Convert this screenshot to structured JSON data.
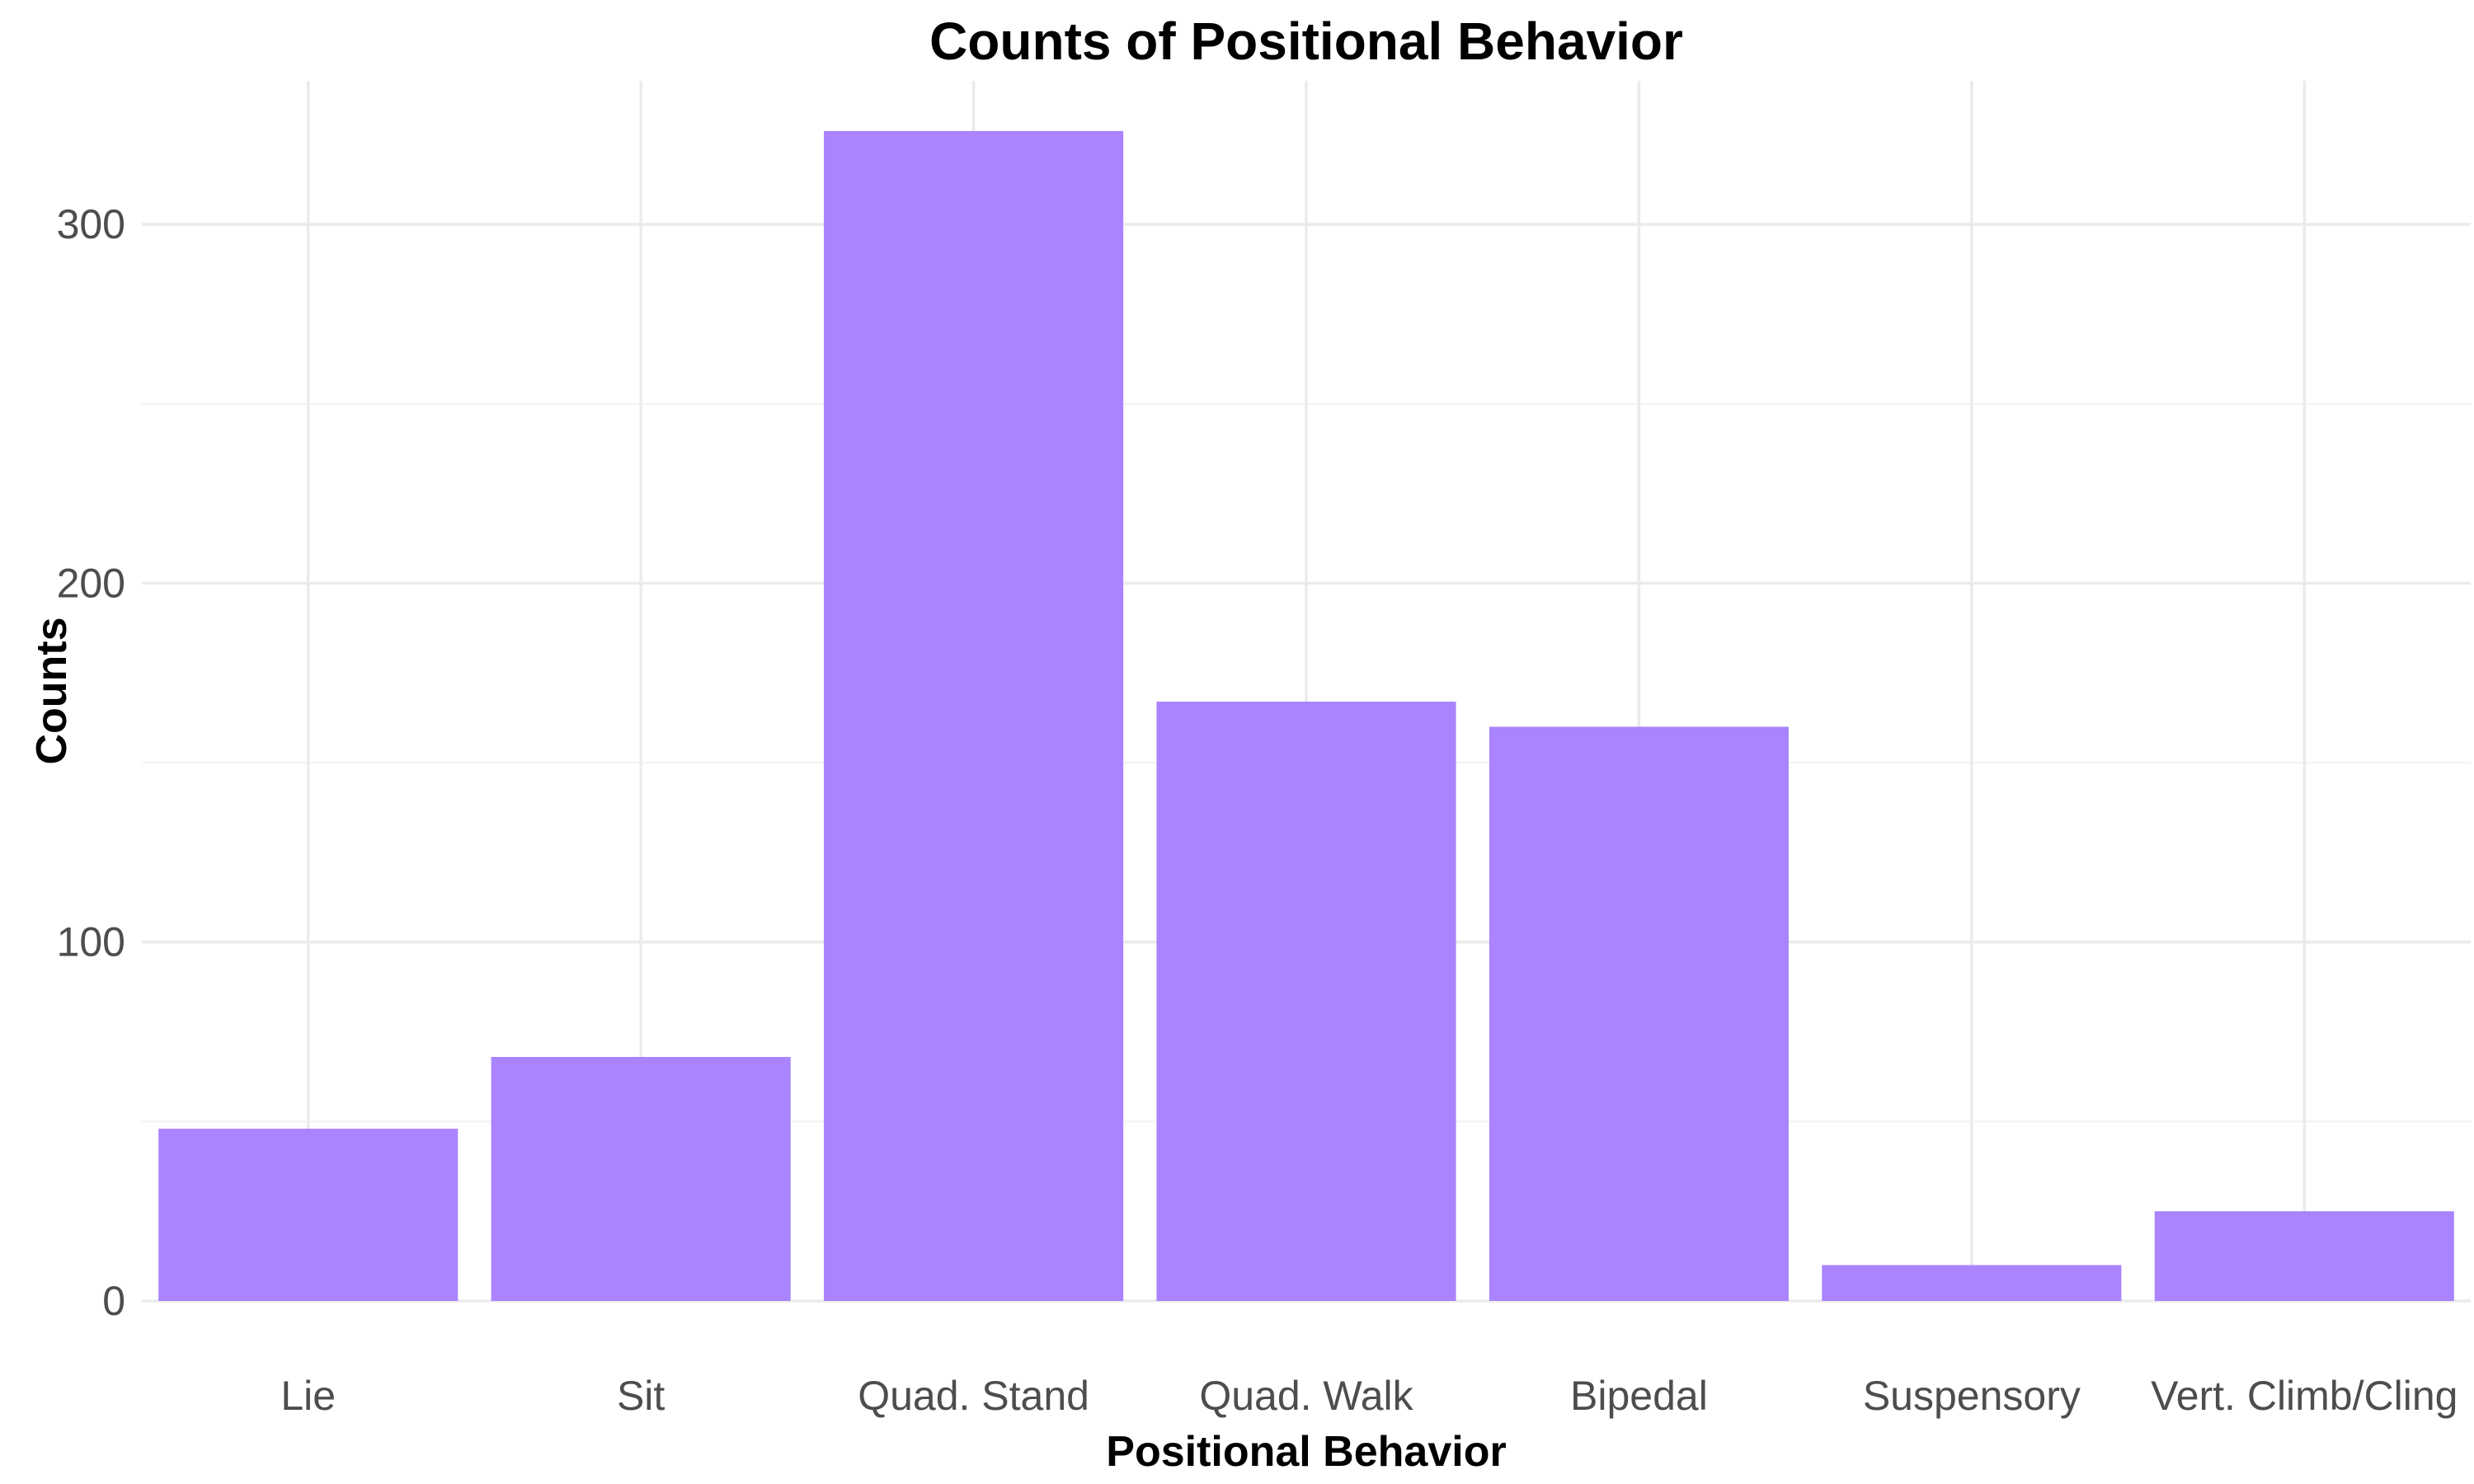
{
  "chart_data": {
    "type": "bar",
    "title": "Counts of Positional Behavior",
    "xlabel": "Positional Behavior",
    "ylabel": "Counts",
    "categories": [
      "Lie",
      "Sit",
      "Quad. Stand",
      "Quad. Walk",
      "Bipedal",
      "Suspensory",
      "Vert. Climb/Cling"
    ],
    "values": [
      48,
      68,
      326,
      167,
      160,
      10,
      25
    ],
    "ylim": [
      0,
      340
    ],
    "yticks": [
      0,
      100,
      200,
      300
    ],
    "ytick_labels": [
      "0",
      "100",
      "200",
      "300"
    ],
    "grid": true,
    "legend": "none",
    "bar_color": "#a984fe"
  }
}
